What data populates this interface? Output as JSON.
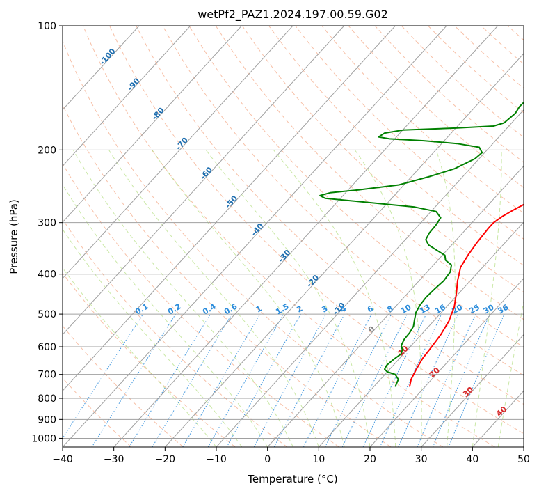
{
  "chart_data": {
    "type": "line",
    "title": "wetPf2_PAZ1.2024.197.00.59.G02",
    "xlabel": "Temperature (°C)",
    "ylabel": "Pressure (hPa)",
    "xlim": [
      -40,
      50
    ],
    "ylim": [
      1050,
      100
    ],
    "y_scale": "log",
    "grid": true,
    "x_ticks": [
      "−40",
      "−30",
      "−20",
      "−10",
      "0",
      "10",
      "20",
      "30",
      "40",
      "50"
    ],
    "y_ticks": [
      "100",
      "200",
      "300",
      "400",
      "500",
      "600",
      "700",
      "800",
      "900",
      "1000"
    ],
    "isotherm_labels": [
      "0",
      "10",
      "20",
      "30",
      "40"
    ],
    "dry_adiabat_labels": [
      "-100",
      "-90",
      "-80",
      "-70",
      "-60",
      "-50",
      "-40",
      "-30",
      "-20",
      "-10"
    ],
    "mixing_ratio_labels": [
      "0.1",
      "0.2",
      "0.4",
      "0.6",
      "1",
      "1.5",
      "2",
      "3",
      "4",
      "6",
      "8",
      "10",
      "13",
      "16",
      "20",
      "25",
      "30",
      "36"
    ],
    "series": [
      {
        "color": "#ff0000",
        "points": [
          [
            17.0,
            750
          ],
          [
            16.0,
            720
          ],
          [
            15.2,
            680
          ],
          [
            14.5,
            640
          ],
          [
            14.2,
            600
          ],
          [
            13.8,
            560
          ],
          [
            13.0,
            520
          ],
          [
            11.5,
            480
          ],
          [
            9.5,
            445
          ],
          [
            7.5,
            415
          ],
          [
            5.7,
            385
          ],
          [
            5.0,
            360
          ],
          [
            4.5,
            335
          ],
          [
            4.2,
            310
          ],
          [
            4.2,
            300
          ],
          [
            4.8,
            290
          ],
          [
            5.8,
            280
          ],
          [
            7.0,
            270
          ],
          [
            8.5,
            255
          ],
          [
            10.0,
            240
          ],
          [
            11.5,
            225
          ],
          [
            13.0,
            208
          ],
          [
            14.5,
            198
          ],
          [
            16.0,
            190
          ],
          [
            17.0,
            182
          ],
          [
            17.8,
            175
          ],
          [
            18.5,
            165
          ],
          [
            19.5,
            155
          ],
          [
            20.5,
            145
          ],
          [
            22.0,
            135
          ],
          [
            24.0,
            127
          ],
          [
            25.5,
            120
          ],
          [
            26.3,
            113
          ],
          [
            26.8,
            106
          ],
          [
            28.0,
            100
          ]
        ]
      },
      {
        "color": "#008000",
        "points": [
          [
            14.2,
            750
          ],
          [
            13.5,
            720
          ],
          [
            12.0,
            700
          ],
          [
            10.0,
            690
          ],
          [
            9.0,
            680
          ],
          [
            8.7,
            665
          ],
          [
            9.0,
            645
          ],
          [
            9.5,
            625
          ],
          [
            9.0,
            610
          ],
          [
            8.0,
            595
          ],
          [
            7.5,
            575
          ],
          [
            7.4,
            555
          ],
          [
            7.0,
            535
          ],
          [
            6.0,
            515
          ],
          [
            5.0,
            495
          ],
          [
            4.5,
            475
          ],
          [
            4.3,
            455
          ],
          [
            4.5,
            435
          ],
          [
            4.8,
            415
          ],
          [
            4.5,
            395
          ],
          [
            3.5,
            380
          ],
          [
            1.5,
            370
          ],
          [
            0.5,
            360
          ],
          [
            -2.0,
            350
          ],
          [
            -4.5,
            340
          ],
          [
            -6.0,
            330
          ],
          [
            -6.5,
            318
          ],
          [
            -6.6,
            305
          ],
          [
            -7.0,
            292
          ],
          [
            -9.0,
            282
          ],
          [
            -14.0,
            275
          ],
          [
            -24.0,
            268
          ],
          [
            -33.0,
            262
          ],
          [
            -34.5,
            258
          ],
          [
            -33.0,
            254
          ],
          [
            -28.0,
            250
          ],
          [
            -21.0,
            243
          ],
          [
            -16.5,
            232
          ],
          [
            -13.0,
            222
          ],
          [
            -10.8,
            210
          ],
          [
            -10.5,
            203
          ],
          [
            -12.0,
            197
          ],
          [
            -17.0,
            193
          ],
          [
            -24.0,
            190
          ],
          [
            -31.0,
            188
          ],
          [
            -33.5,
            186
          ],
          [
            -33.0,
            182
          ],
          [
            -30.0,
            179
          ],
          [
            -20.0,
            177
          ],
          [
            -13.0,
            175
          ],
          [
            -11.5,
            172
          ],
          [
            -11.0,
            163
          ],
          [
            -11.4,
            157
          ],
          [
            -11.2,
            150
          ],
          [
            -10.5,
            140
          ],
          [
            -9.0,
            130
          ],
          [
            -5.5,
            120
          ],
          [
            -3.5,
            110
          ],
          [
            -2.0,
            100
          ]
        ]
      }
    ]
  }
}
